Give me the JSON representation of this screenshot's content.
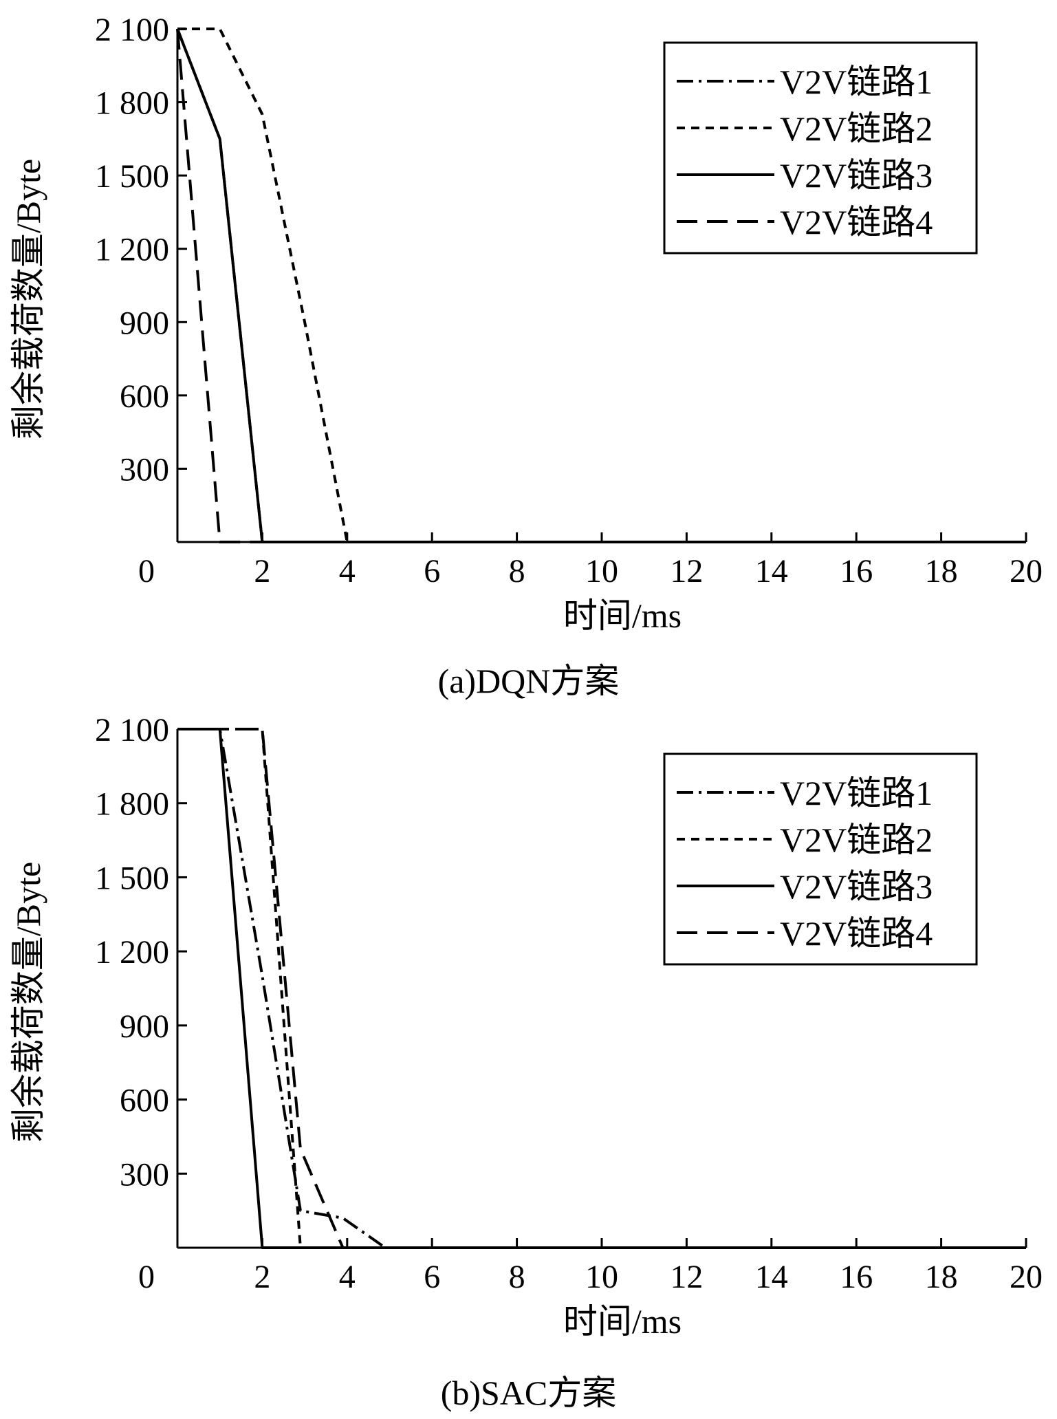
{
  "chart_data": [
    {
      "type": "line",
      "caption": "(a)DQN方案",
      "xlabel": "时间/ms",
      "ylabel": "剩余载荷数量/Byte",
      "xlim": [
        0,
        20
      ],
      "ylim": [
        0,
        2100
      ],
      "xticks": [
        0,
        2,
        4,
        6,
        8,
        10,
        12,
        14,
        16,
        18,
        20
      ],
      "yticks": [
        300,
        600,
        900,
        1200,
        1500,
        1800,
        2100
      ],
      "ytick_labels": [
        "300",
        "600",
        "900",
        "1 200",
        "1 500",
        "1 800",
        "2 100"
      ],
      "legend_position": "top-right",
      "series": [
        {
          "name": "V2V链路1",
          "dash": "dashdot",
          "x": [
            0,
            1,
            2,
            20
          ],
          "y": [
            2100,
            1650,
            0,
            0
          ]
        },
        {
          "name": "V2V链路2",
          "dash": "dot",
          "x": [
            0,
            1,
            2,
            3,
            4,
            20
          ],
          "y": [
            2100,
            2100,
            1750,
            900,
            0,
            0
          ]
        },
        {
          "name": "V2V链路3",
          "dash": "solid",
          "x": [
            0,
            1,
            2,
            20
          ],
          "y": [
            2100,
            1650,
            0,
            0
          ]
        },
        {
          "name": "V2V链路4",
          "dash": "dash",
          "x": [
            0,
            1,
            20
          ],
          "y": [
            2100,
            0,
            0
          ]
        }
      ]
    },
    {
      "type": "line",
      "caption": "(b)SAC方案",
      "xlabel": "时间/ms",
      "ylabel": "剩余载荷数量/Byte",
      "xlim": [
        0,
        20
      ],
      "ylim": [
        0,
        2100
      ],
      "xticks": [
        0,
        2,
        4,
        6,
        8,
        10,
        12,
        14,
        16,
        18,
        20
      ],
      "yticks": [
        300,
        600,
        900,
        1200,
        1500,
        1800,
        2100
      ],
      "ytick_labels": [
        "300",
        "600",
        "900",
        "1 200",
        "1 500",
        "1 800",
        "2 100"
      ],
      "legend_position": "top-right",
      "series": [
        {
          "name": "V2V链路1",
          "dash": "dashdot",
          "x": [
            0,
            1,
            2,
            2.9,
            3.9,
            4.9,
            20
          ],
          "y": [
            2100,
            2100,
            1100,
            150,
            120,
            0,
            0
          ]
        },
        {
          "name": "V2V链路2",
          "dash": "dot",
          "x": [
            0,
            2,
            2.9,
            20
          ],
          "y": [
            2100,
            2100,
            0,
            0
          ]
        },
        {
          "name": "V2V链路3",
          "dash": "solid",
          "x": [
            0,
            1,
            2,
            20
          ],
          "y": [
            2100,
            2100,
            0,
            0
          ]
        },
        {
          "name": "V2V链路4",
          "dash": "dash",
          "x": [
            0,
            2,
            2.9,
            3.9,
            20
          ],
          "y": [
            2100,
            2100,
            400,
            0,
            0
          ]
        }
      ]
    }
  ]
}
